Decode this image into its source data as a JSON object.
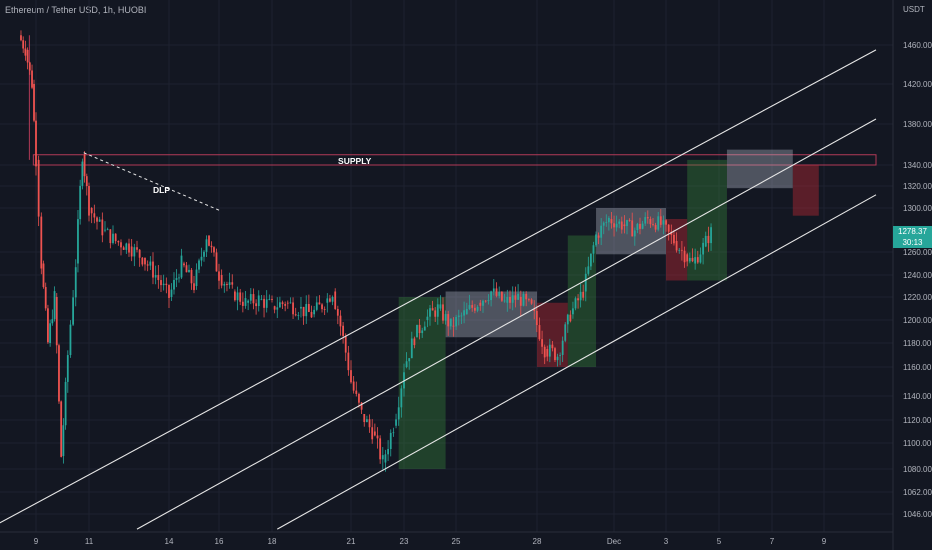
{
  "header": {
    "symbol_label": "Ethereum / Tether USD, 1h, HUOBI",
    "price_unit": "USDT"
  },
  "last_price": {
    "value": "1278.37",
    "countdown": "30:13"
  },
  "chart_data": {
    "type": "candlestick",
    "title": "Ethereum / Tether USD, 1h, HUOBI",
    "ylabel": "USDT",
    "ylim": [
      1030,
      1480
    ],
    "y_ticks": [
      "1460.00",
      "1420.00",
      "1380.00",
      "1340.00",
      "1320.00",
      "1300.00",
      "1260.00",
      "1240.00",
      "1220.00",
      "1200.00",
      "1180.00",
      "1160.00",
      "1140.00",
      "1120.00",
      "1100.00",
      "1080.00",
      "1062.00",
      "1046.00"
    ],
    "x_ticks": [
      "9",
      "11",
      "14",
      "16",
      "18",
      "21",
      "23",
      "25",
      "28",
      "Dec",
      "3",
      "5",
      "7",
      "9"
    ],
    "last_price": 1278.37,
    "price_path": [
      {
        "t": 8.35,
        "p": 1470
      },
      {
        "t": 8.6,
        "p": 1455
      },
      {
        "t": 8.85,
        "p": 1420
      },
      {
        "t": 9.0,
        "p": 1345
      },
      {
        "t": 9.2,
        "p": 1250
      },
      {
        "t": 9.45,
        "p": 1180
      },
      {
        "t": 9.7,
        "p": 1220
      },
      {
        "t": 9.95,
        "p": 1090
      },
      {
        "t": 10.2,
        "p": 1170
      },
      {
        "t": 10.5,
        "p": 1250
      },
      {
        "t": 10.75,
        "p": 1350
      },
      {
        "t": 11.0,
        "p": 1300
      },
      {
        "t": 11.5,
        "p": 1280
      },
      {
        "t": 12.0,
        "p": 1270
      },
      {
        "t": 12.5,
        "p": 1265
      },
      {
        "t": 13.0,
        "p": 1255
      },
      {
        "t": 13.5,
        "p": 1240
      },
      {
        "t": 14.0,
        "p": 1220
      },
      {
        "t": 14.5,
        "p": 1250
      },
      {
        "t": 15.0,
        "p": 1230
      },
      {
        "t": 15.5,
        "p": 1275
      },
      {
        "t": 16.0,
        "p": 1240
      },
      {
        "t": 16.5,
        "p": 1225
      },
      {
        "t": 17.0,
        "p": 1215
      },
      {
        "t": 17.5,
        "p": 1218
      },
      {
        "t": 18.0,
        "p": 1212
      },
      {
        "t": 18.5,
        "p": 1215
      },
      {
        "t": 19.0,
        "p": 1210
      },
      {
        "t": 19.5,
        "p": 1205
      },
      {
        "t": 20.0,
        "p": 1215
      },
      {
        "t": 20.3,
        "p": 1225
      },
      {
        "t": 20.6,
        "p": 1195
      },
      {
        "t": 21.0,
        "p": 1150
      },
      {
        "t": 21.4,
        "p": 1125
      },
      {
        "t": 21.8,
        "p": 1110
      },
      {
        "t": 22.2,
        "p": 1085
      },
      {
        "t": 22.6,
        "p": 1115
      },
      {
        "t": 23.0,
        "p": 1160
      },
      {
        "t": 23.4,
        "p": 1185
      },
      {
        "t": 23.8,
        "p": 1200
      },
      {
        "t": 24.3,
        "p": 1210
      },
      {
        "t": 24.8,
        "p": 1195
      },
      {
        "t": 25.3,
        "p": 1205
      },
      {
        "t": 25.8,
        "p": 1215
      },
      {
        "t": 26.3,
        "p": 1225
      },
      {
        "t": 26.8,
        "p": 1215
      },
      {
        "t": 27.3,
        "p": 1220
      },
      {
        "t": 27.8,
        "p": 1210
      },
      {
        "t": 28.3,
        "p": 1175
      },
      {
        "t": 28.8,
        "p": 1170
      },
      {
        "t": 29.3,
        "p": 1205
      },
      {
        "t": 29.8,
        "p": 1225
      },
      {
        "t": 30.3,
        "p": 1275
      },
      {
        "t": 30.8,
        "p": 1290
      },
      {
        "t": 31.3,
        "p": 1285
      },
      {
        "t": 31.8,
        "p": 1280
      },
      {
        "t": 32.3,
        "p": 1290
      },
      {
        "t": 32.8,
        "p": 1285
      },
      {
        "t": 33.3,
        "p": 1270
      },
      {
        "t": 33.7,
        "p": 1258
      },
      {
        "t": 34.0,
        "p": 1250
      },
      {
        "t": 34.4,
        "p": 1265
      },
      {
        "t": 34.7,
        "p": 1278
      }
    ],
    "zones": [
      {
        "label": "SUPPLY",
        "t0": 8.9,
        "t1": 41.0,
        "p_low": 1340,
        "p_high": 1350,
        "kind": "supply"
      },
      {
        "t0": 22.8,
        "t1": 24.6,
        "p_low": 1080,
        "p_high": 1220,
        "kind": "bull"
      },
      {
        "t0": 24.6,
        "t1": 28.0,
        "p_low": 1185,
        "p_high": 1225,
        "kind": "range"
      },
      {
        "t0": 28.0,
        "t1": 29.2,
        "p_low": 1160,
        "p_high": 1215,
        "kind": "bear"
      },
      {
        "t0": 29.2,
        "t1": 30.3,
        "p_low": 1160,
        "p_high": 1275,
        "kind": "bull"
      },
      {
        "t0": 30.3,
        "t1": 33.0,
        "p_low": 1258,
        "p_high": 1300,
        "kind": "range"
      },
      {
        "t0": 33.0,
        "t1": 33.8,
        "p_low": 1235,
        "p_high": 1290,
        "kind": "bear"
      },
      {
        "t0": 33.8,
        "t1": 35.3,
        "p_low": 1235,
        "p_high": 1345,
        "kind": "bull"
      },
      {
        "t0": 35.3,
        "t1": 37.8,
        "p_low": 1318,
        "p_high": 1355,
        "kind": "range"
      },
      {
        "t0": 37.8,
        "t1": 38.8,
        "p_low": 1293,
        "p_high": 1340,
        "kind": "bear"
      }
    ],
    "channel_lines": [
      {
        "t0": 7.2,
        "p0": 1035,
        "t1": 41.0,
        "p1": 1455
      },
      {
        "t0": 12.8,
        "p0": 1035,
        "t1": 41.0,
        "p1": 1385
      },
      {
        "t0": 18.2,
        "p0": 1035,
        "t1": 41.0,
        "p1": 1312
      }
    ],
    "dlp_line": {
      "label": "DLP",
      "t0": 10.8,
      "p0": 1352,
      "t1": 16.1,
      "p1": 1297
    }
  }
}
